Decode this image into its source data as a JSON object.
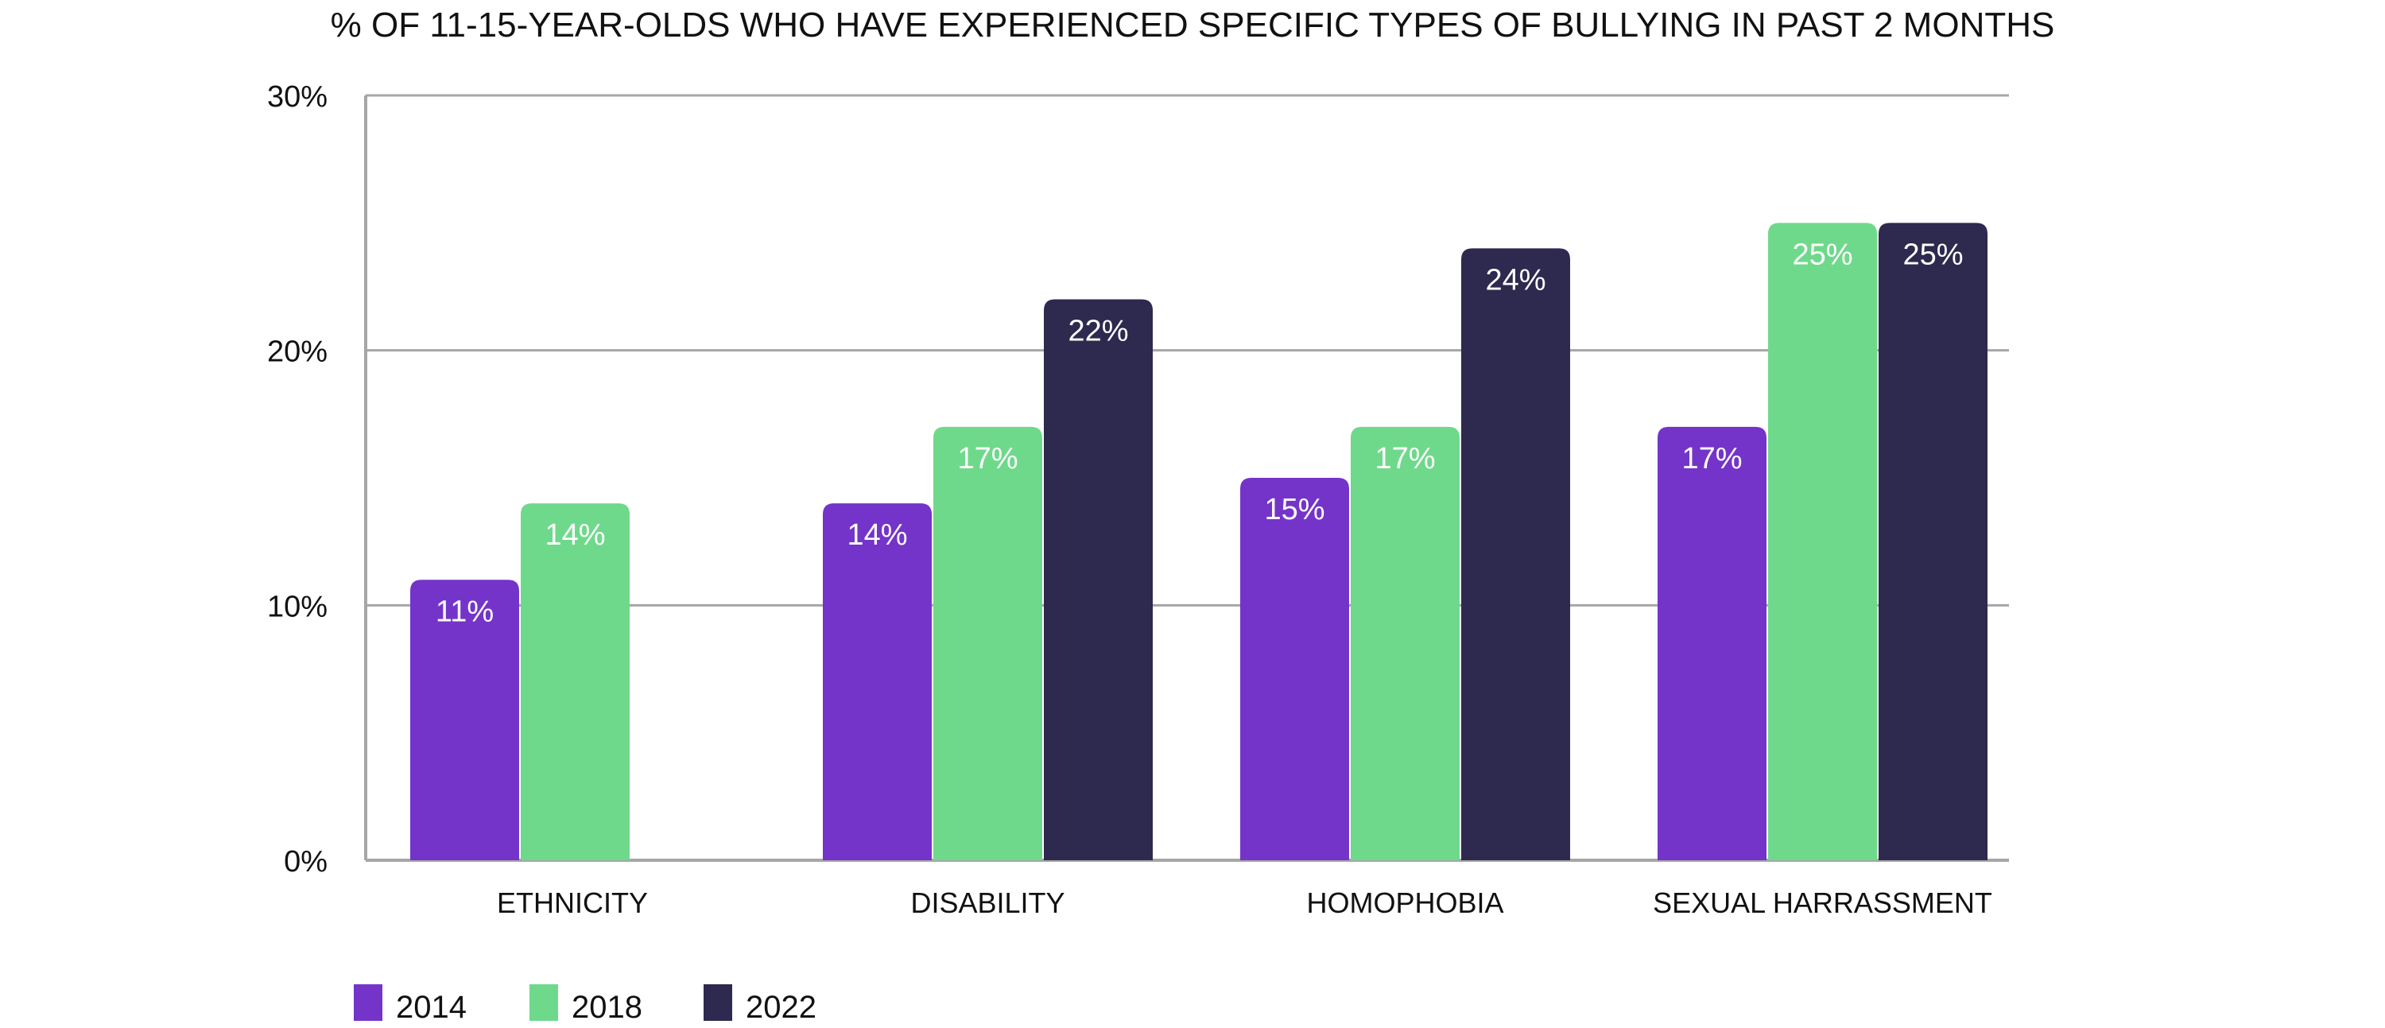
{
  "chart_data": {
    "type": "bar",
    "title": "% OF 11-15-YEAR-OLDS WHO HAVE EXPERIENCED SPECIFIC TYPES OF BULLYING IN PAST 2 MONTHS",
    "xlabel": "",
    "ylabel": "",
    "ylim": [
      0,
      30
    ],
    "yticks": [
      0,
      10,
      20,
      30
    ],
    "ytick_labels": [
      "0%",
      "10%",
      "20%",
      "30%"
    ],
    "grid": true,
    "legend_position": "bottom-left",
    "categories": [
      "ETHNICITY",
      "DISABILITY",
      "HOMOPHOBIA",
      "SEXUAL HARRASSMENT"
    ],
    "series": [
      {
        "name": "2014",
        "color": "#7434c9",
        "values": [
          11,
          14,
          15,
          17
        ],
        "labels": [
          "11%",
          "14%",
          "15%",
          "17%"
        ]
      },
      {
        "name": "2018",
        "color": "#6fd98b",
        "values": [
          14,
          17,
          17,
          25
        ],
        "labels": [
          "14%",
          "17%",
          "17%",
          "25%"
        ]
      },
      {
        "name": "2022",
        "color": "#2e294e",
        "values": [
          null,
          22,
          24,
          25
        ],
        "labels": [
          null,
          "22%",
          "24%",
          "25%"
        ]
      }
    ]
  }
}
